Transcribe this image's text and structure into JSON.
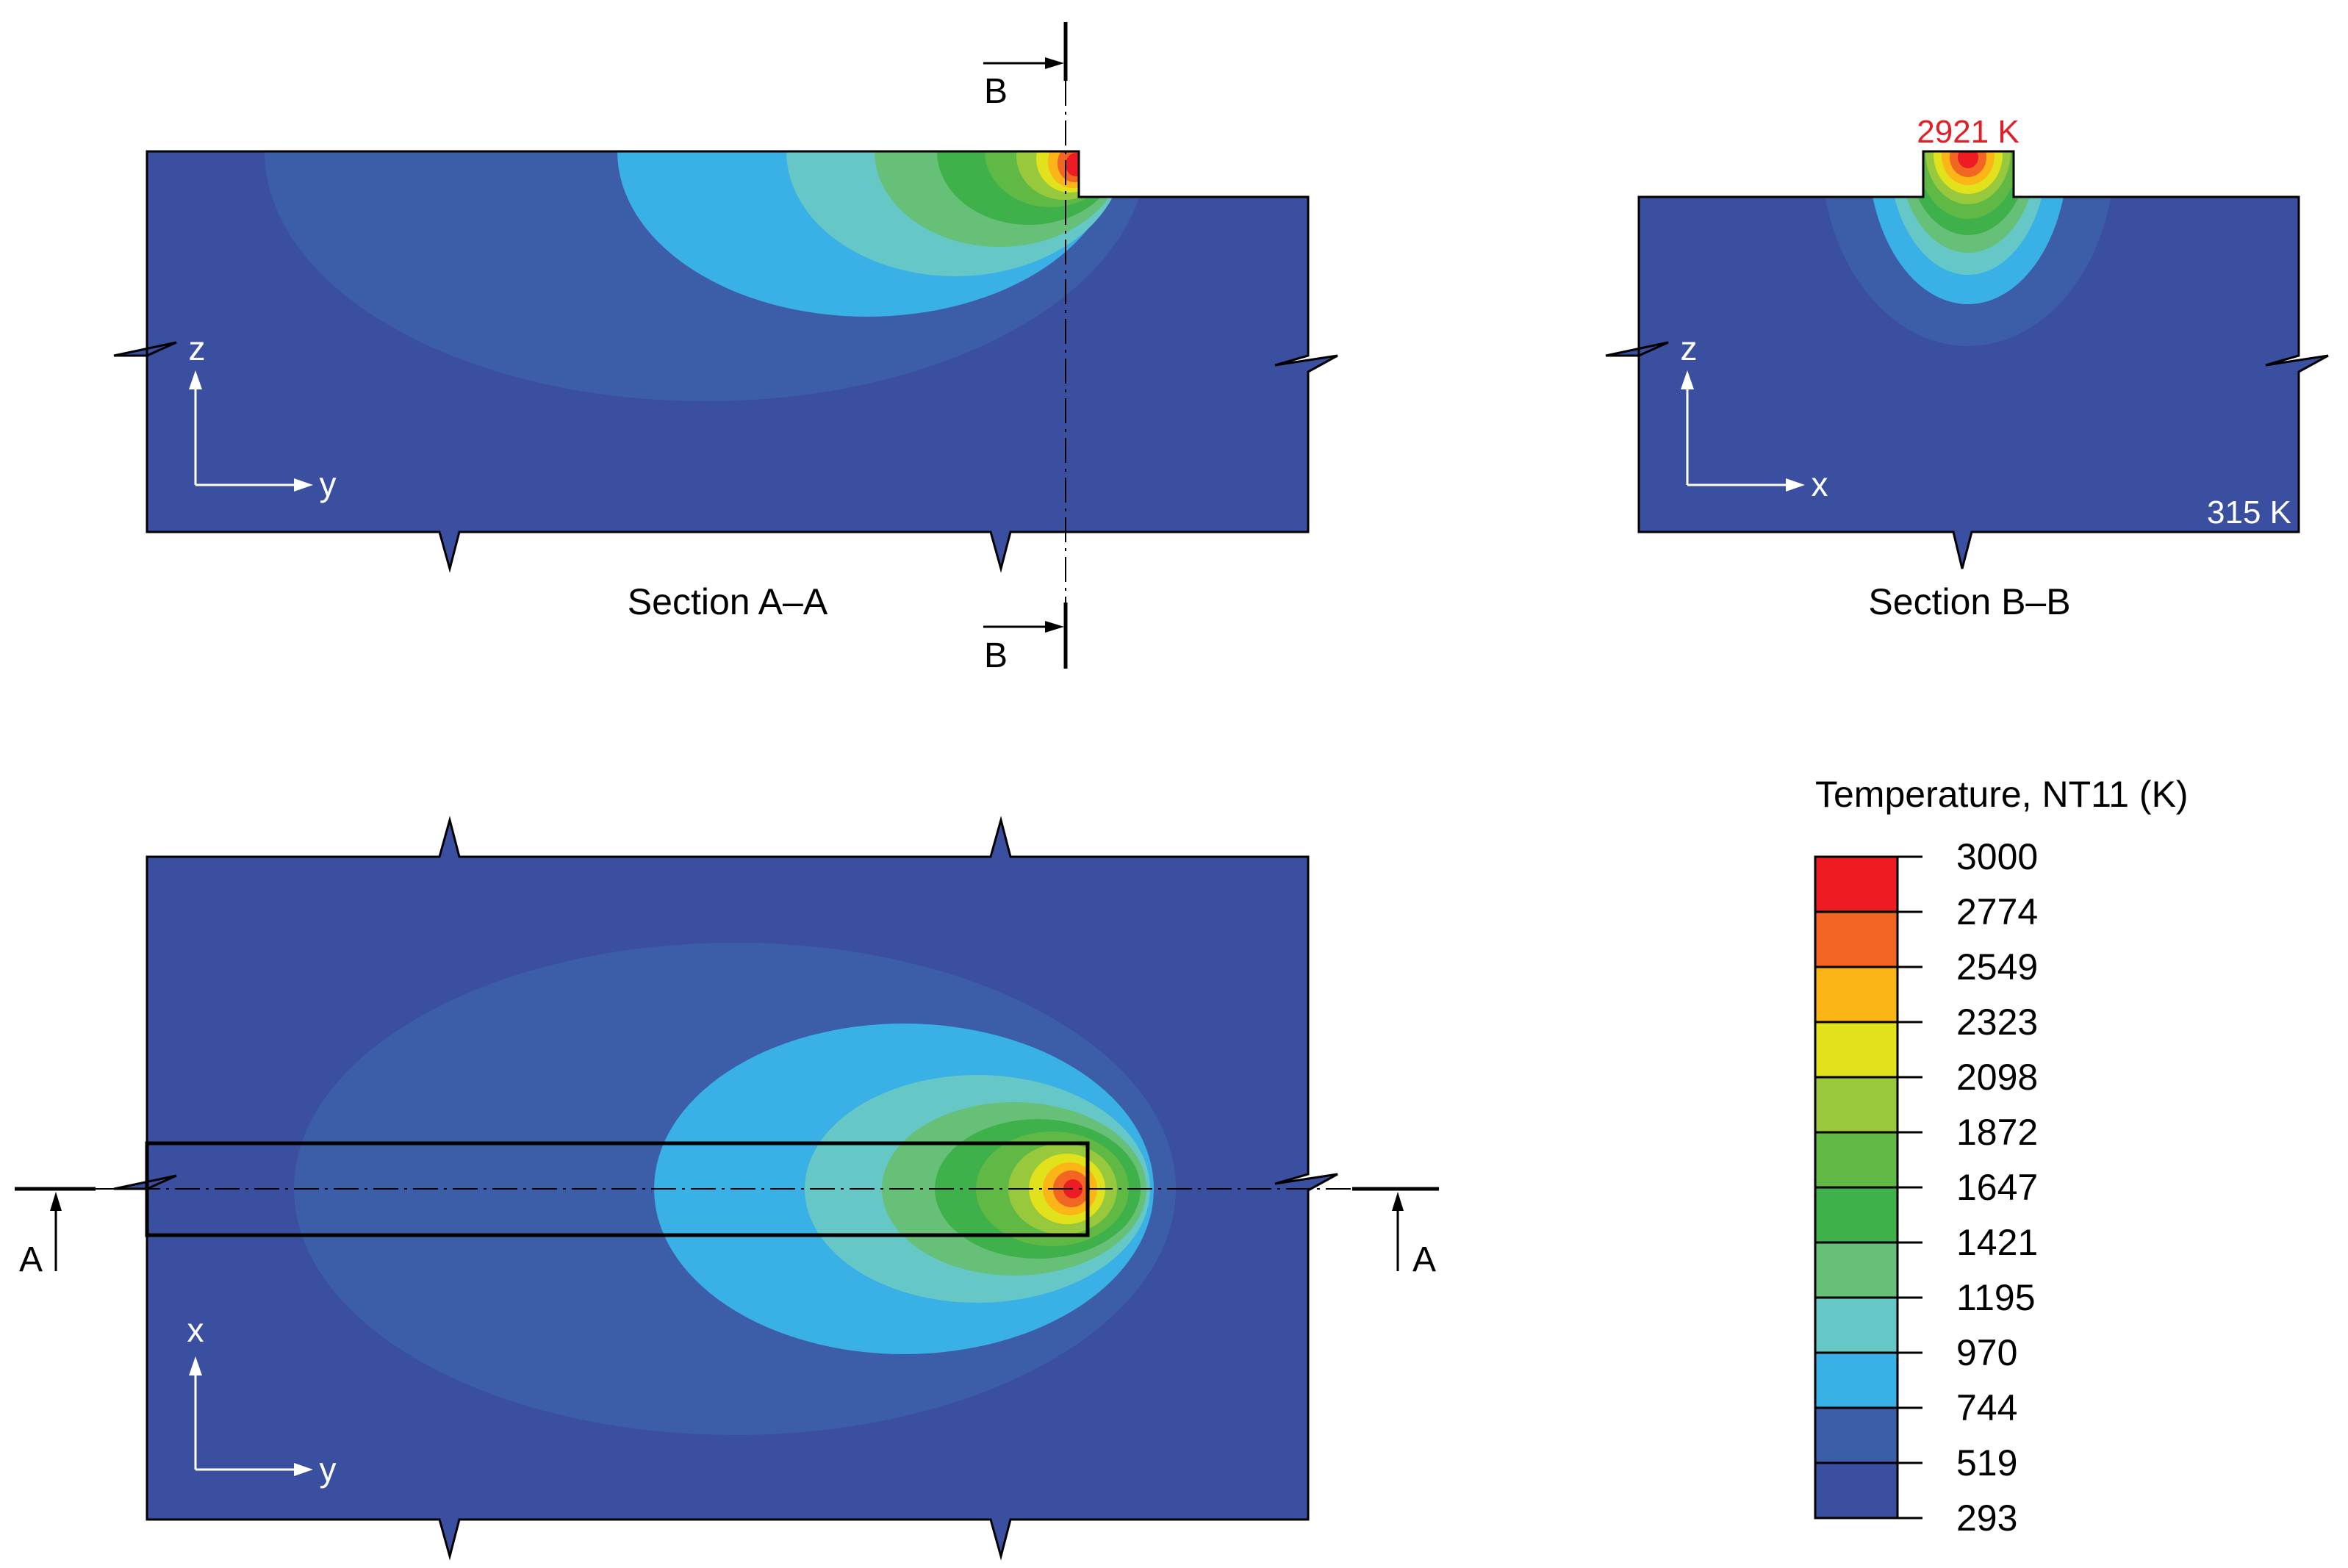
{
  "section_aa": {
    "caption": "Section A–A",
    "axis_vertical": "z",
    "axis_horizontal": "y",
    "cut_marker_top": "B",
    "cut_marker_bottom": "B"
  },
  "section_bb": {
    "caption": "Section B–B",
    "axis_vertical": "z",
    "axis_horizontal": "x",
    "peak_label": "2921 K",
    "min_label": "315 K"
  },
  "plan_view": {
    "axis_vertical": "x",
    "axis_horizontal": "y",
    "cut_marker_left": "A",
    "cut_marker_right": "A"
  },
  "legend": {
    "title": "Temperature, NT11 (K)",
    "ticks": [
      "3000",
      "2774",
      "2549",
      "2323",
      "2098",
      "1872",
      "1647",
      "1421",
      "1195",
      "970",
      "744",
      "519",
      "293"
    ],
    "band_colors": [
      "#ed1c24",
      "#f26522",
      "#fbb516",
      "#e1e11c",
      "#98c93c",
      "#5fb944",
      "#3fb14a",
      "#66c077",
      "#65c8c6",
      "#39b0e6",
      "#3c5ea9",
      "#3a4fa0"
    ]
  },
  "colors": {
    "background": "#3a4fa0",
    "peak_label": "#e41e26"
  }
}
